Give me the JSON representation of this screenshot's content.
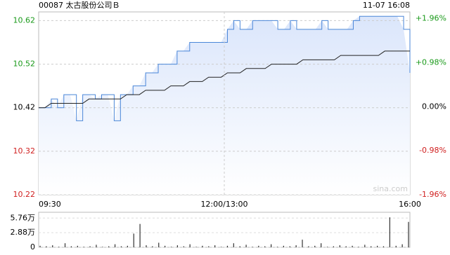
{
  "chart_data": [
    {
      "type": "line",
      "title": "00087 太古股份公司Ｂ",
      "timestamp": "11-07 16:08",
      "watermark": "sina.com",
      "time_labels": [
        "09:30",
        "12:00/13:00",
        "16:00"
      ],
      "ylim": [
        10.22,
        10.64
      ],
      "yticks": [
        {
          "value": 10.62,
          "label": "10.62",
          "color": "#1a9a1a"
        },
        {
          "value": 10.52,
          "label": "10.52",
          "color": "#1a9a1a"
        },
        {
          "value": 10.42,
          "label": "10.42",
          "color": "#000000"
        },
        {
          "value": 10.32,
          "label": "10.32",
          "color": "#d02020"
        },
        {
          "value": 10.22,
          "label": "10.22",
          "color": "#d02020"
        }
      ],
      "y2lim": [
        -1.96,
        2.11
      ],
      "y2ticks": [
        {
          "value": 1.96,
          "label": "+1.96%",
          "color": "#1a9a1a"
        },
        {
          "value": 0.98,
          "label": "+0.98%",
          "color": "#1a9a1a"
        },
        {
          "value": 0,
          "label": "0.00%",
          "color": "#000000"
        },
        {
          "value": -0.98,
          "label": "-0.98%",
          "color": "#d02020"
        },
        {
          "value": -1.96,
          "label": "-1.96%",
          "color": "#d02020"
        }
      ],
      "grid": true,
      "series": [
        {
          "name": "price",
          "color": "#4a86d8",
          "fill": "#dbe6fb",
          "values": [
            10.42,
            10.42,
            10.44,
            10.42,
            10.45,
            10.45,
            10.39,
            10.45,
            10.45,
            10.44,
            10.45,
            10.45,
            10.39,
            10.45,
            10.45,
            10.47,
            10.47,
            10.5,
            10.5,
            10.52,
            10.52,
            10.52,
            10.55,
            10.55,
            10.57,
            10.57,
            10.57,
            10.57,
            10.57,
            10.57,
            10.6,
            10.62,
            10.6,
            10.6,
            10.62,
            10.62,
            10.62,
            10.62,
            10.6,
            10.6,
            10.62,
            10.6,
            10.6,
            10.6,
            10.6,
            10.62,
            10.6,
            10.6,
            10.6,
            10.6,
            10.62,
            10.63,
            10.63,
            10.63,
            10.63,
            10.63,
            10.63,
            10.63,
            10.6,
            10.5
          ]
        },
        {
          "name": "average",
          "color": "#222222",
          "values": [
            10.42,
            10.42,
            10.43,
            10.43,
            10.43,
            10.43,
            10.43,
            10.43,
            10.44,
            10.44,
            10.44,
            10.44,
            10.44,
            10.44,
            10.45,
            10.45,
            10.45,
            10.46,
            10.46,
            10.46,
            10.46,
            10.47,
            10.47,
            10.47,
            10.48,
            10.48,
            10.48,
            10.49,
            10.49,
            10.49,
            10.5,
            10.5,
            10.5,
            10.51,
            10.51,
            10.51,
            10.51,
            10.52,
            10.52,
            10.52,
            10.52,
            10.52,
            10.53,
            10.53,
            10.53,
            10.53,
            10.53,
            10.53,
            10.54,
            10.54,
            10.54,
            10.54,
            10.54,
            10.54,
            10.54,
            10.55,
            10.55,
            10.55,
            10.55,
            10.55
          ]
        }
      ]
    },
    {
      "type": "bar",
      "ylim": [
        0,
        6.9
      ],
      "yticks": [
        {
          "value": 5.76,
          "label": "5.76万"
        },
        {
          "value": 2.88,
          "label": "2.88万"
        },
        0
      ],
      "color": "#333333",
      "values": [
        0.3,
        0.2,
        0.4,
        0.1,
        0.8,
        0.2,
        0.3,
        0.1,
        0.2,
        0.5,
        0.1,
        0.2,
        0.6,
        0.2,
        0.3,
        2.7,
        4.6,
        0.4,
        0.2,
        0.9,
        0.3,
        0.1,
        0.4,
        0.2,
        0.6,
        0.1,
        0.3,
        0.2,
        0.4,
        0.1,
        0.3,
        0.8,
        0.2,
        0.5,
        0.1,
        0.3,
        0.2,
        0.6,
        0.1,
        0.3,
        0.2,
        0.4,
        1.5,
        0.2,
        0.3,
        0.8,
        0.1,
        0.2,
        0.4,
        0.2,
        0.3,
        0.1,
        0.5,
        0.2,
        0.3,
        0.2,
        5.9,
        0.3,
        0.6,
        5.0
      ]
    }
  ]
}
